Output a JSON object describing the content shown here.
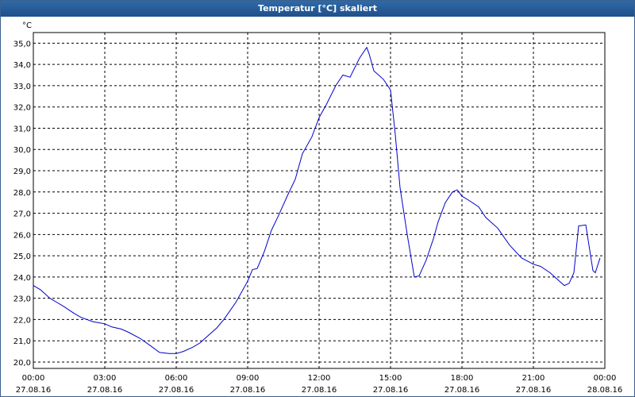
{
  "window": {
    "title": "Temperatur [°C] skaliert"
  },
  "chart_data": {
    "type": "line",
    "title": "Temperatur [°C] skaliert",
    "ylabel": "°C",
    "xlabel": "",
    "ylim": [
      19.7,
      35.5
    ],
    "xlim": [
      0,
      24
    ],
    "grid": true,
    "line_color": "#0000cc",
    "yticks": [
      "35,0",
      "34,0",
      "33,0",
      "32,0",
      "31,0",
      "30,0",
      "29,0",
      "28,0",
      "27,0",
      "26,0",
      "25,0",
      "24,0",
      "23,0",
      "22,0",
      "21,0",
      "20,0"
    ],
    "ytick_values": [
      35,
      34,
      33,
      32,
      31,
      30,
      29,
      28,
      27,
      26,
      25,
      24,
      23,
      22,
      21,
      20
    ],
    "xticks": [
      {
        "time": "00:00",
        "date": "27.08.16",
        "hour": 0
      },
      {
        "time": "03:00",
        "date": "27.08.16",
        "hour": 3
      },
      {
        "time": "06:00",
        "date": "27.08.16",
        "hour": 6
      },
      {
        "time": "09:00",
        "date": "27.08.16",
        "hour": 9
      },
      {
        "time": "12:00",
        "date": "27.08.16",
        "hour": 12
      },
      {
        "time": "15:00",
        "date": "27.08.16",
        "hour": 15
      },
      {
        "time": "18:00",
        "date": "27.08.16",
        "hour": 18
      },
      {
        "time": "21:00",
        "date": "27.08.16",
        "hour": 21
      },
      {
        "time": "00:00",
        "date": "28.08.16",
        "hour": 24
      }
    ],
    "series": [
      {
        "x": [
          0,
          0.3,
          0.7,
          1.0,
          1.3,
          1.7,
          2.0,
          2.5,
          3.0,
          3.3,
          3.7,
          4.0,
          4.5,
          5.0,
          5.3,
          5.7,
          6.0,
          6.3,
          6.7,
          7.0,
          7.3,
          7.7,
          8.0,
          8.5,
          9.0,
          9.2,
          9.4,
          9.7,
          10.0,
          10.3,
          10.7,
          11.0,
          11.3,
          11.7,
          12.0,
          12.3,
          12.7,
          13.0,
          13.3,
          13.7,
          14.0,
          14.1,
          14.3,
          14.7,
          15.0,
          15.2,
          15.4,
          15.7,
          16.0,
          16.2,
          16.5,
          16.8,
          17.0,
          17.3,
          17.6,
          17.8,
          18.0,
          18.3,
          18.7,
          19.0,
          19.5,
          20.0,
          20.5,
          21.0,
          21.3,
          21.7,
          22.0,
          22.3,
          22.5,
          22.7,
          22.9,
          23.2,
          23.5,
          23.6,
          23.8
        ],
        "y": [
          23.6,
          23.4,
          23.0,
          22.8,
          22.6,
          22.3,
          22.1,
          21.9,
          21.8,
          21.65,
          21.55,
          21.4,
          21.1,
          20.7,
          20.45,
          20.4,
          20.4,
          20.5,
          20.7,
          20.9,
          21.2,
          21.6,
          22.0,
          22.8,
          23.8,
          24.35,
          24.4,
          25.2,
          26.2,
          26.9,
          27.9,
          28.6,
          29.8,
          30.6,
          31.5,
          32.1,
          33.0,
          33.5,
          33.4,
          34.3,
          34.8,
          34.5,
          33.7,
          33.3,
          32.8,
          30.7,
          28.2,
          26.0,
          24.0,
          24.05,
          24.8,
          25.8,
          26.6,
          27.5,
          28.0,
          28.1,
          27.8,
          27.6,
          27.3,
          26.8,
          26.3,
          25.5,
          24.9,
          24.6,
          24.5,
          24.2,
          23.9,
          23.6,
          23.7,
          24.2,
          26.4,
          26.45,
          24.3,
          24.2,
          24.9
        ]
      }
    ]
  }
}
